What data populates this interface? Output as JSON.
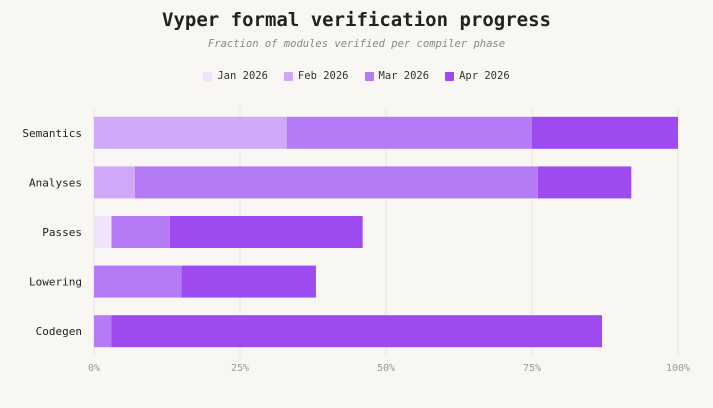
{
  "chart_data": {
    "type": "bar",
    "orientation": "horizontal",
    "stacked": true,
    "title": "Vyper formal verification progress",
    "subtitle": "Fraction of modules verified per compiler phase",
    "categories": [
      "Semantics",
      "Analyses",
      "Passes",
      "Lowering",
      "Codegen"
    ],
    "series": [
      {
        "name": "Jan 2026",
        "color": "#f0e4fc",
        "values": [
          0,
          0,
          3,
          0,
          0
        ]
      },
      {
        "name": "Feb 2026",
        "color": "#d0a8f8",
        "values": [
          33,
          7,
          0,
          0,
          0
        ]
      },
      {
        "name": "Mar 2026",
        "color": "#b57af5",
        "values": [
          42,
          69,
          10,
          15,
          3
        ]
      },
      {
        "name": "Apr 2026",
        "color": "#9d4bf1",
        "values": [
          25,
          16,
          33,
          23,
          84
        ]
      }
    ],
    "x_ticks": [
      "0%",
      "25%",
      "50%",
      "75%",
      "100%"
    ],
    "xlim": [
      0,
      100
    ],
    "grid": true,
    "legend_position": "top-center"
  }
}
